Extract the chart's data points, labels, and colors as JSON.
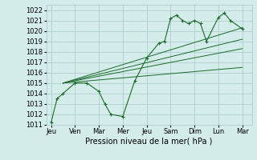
{
  "background_color": "#d4ecea",
  "grid_color": "#a8c8c8",
  "line_color": "#1a6b2a",
  "title": "Pression niveau de la mer( hPa )",
  "ylabel_fontsize": 6,
  "xlabel_fontsize": 7,
  "tick_fontsize": 6,
  "ylim": [
    1011,
    1022.5
  ],
  "yticks": [
    1011,
    1012,
    1013,
    1014,
    1015,
    1016,
    1017,
    1018,
    1019,
    1020,
    1021,
    1022
  ],
  "xtick_labels": [
    "Jeu",
    "Ven",
    "Mar",
    "Mer",
    "Jeu",
    "Sam",
    "Dim",
    "Lun",
    "Mar"
  ],
  "main_x": [
    0,
    0.25,
    0.5,
    1.0,
    1.5,
    2.0,
    2.25,
    2.5,
    3.0,
    3.5,
    4.0,
    4.5,
    4.75,
    5.0,
    5.25,
    5.5,
    5.75,
    6.0,
    6.25,
    6.5,
    7.0,
    7.25,
    7.5,
    8.0
  ],
  "main_y": [
    1011.2,
    1013.5,
    1014.0,
    1015.0,
    1015.0,
    1014.2,
    1013.0,
    1012.0,
    1011.8,
    1015.2,
    1017.4,
    1018.8,
    1019.0,
    1021.2,
    1021.5,
    1021.0,
    1020.7,
    1021.0,
    1020.7,
    1019.0,
    1021.3,
    1021.7,
    1021.0,
    1020.2
  ],
  "trend_lines": [
    {
      "x": [
        0.5,
        8.0
      ],
      "y": [
        1015.0,
        1020.3
      ]
    },
    {
      "x": [
        0.5,
        8.0
      ],
      "y": [
        1015.0,
        1019.2
      ]
    },
    {
      "x": [
        0.5,
        8.0
      ],
      "y": [
        1015.0,
        1018.3
      ]
    },
    {
      "x": [
        0.5,
        8.0
      ],
      "y": [
        1015.0,
        1016.5
      ]
    }
  ],
  "xtick_positions": [
    0,
    1,
    2,
    3,
    4,
    5,
    6,
    7,
    8
  ],
  "xlim": [
    -0.2,
    8.4
  ]
}
